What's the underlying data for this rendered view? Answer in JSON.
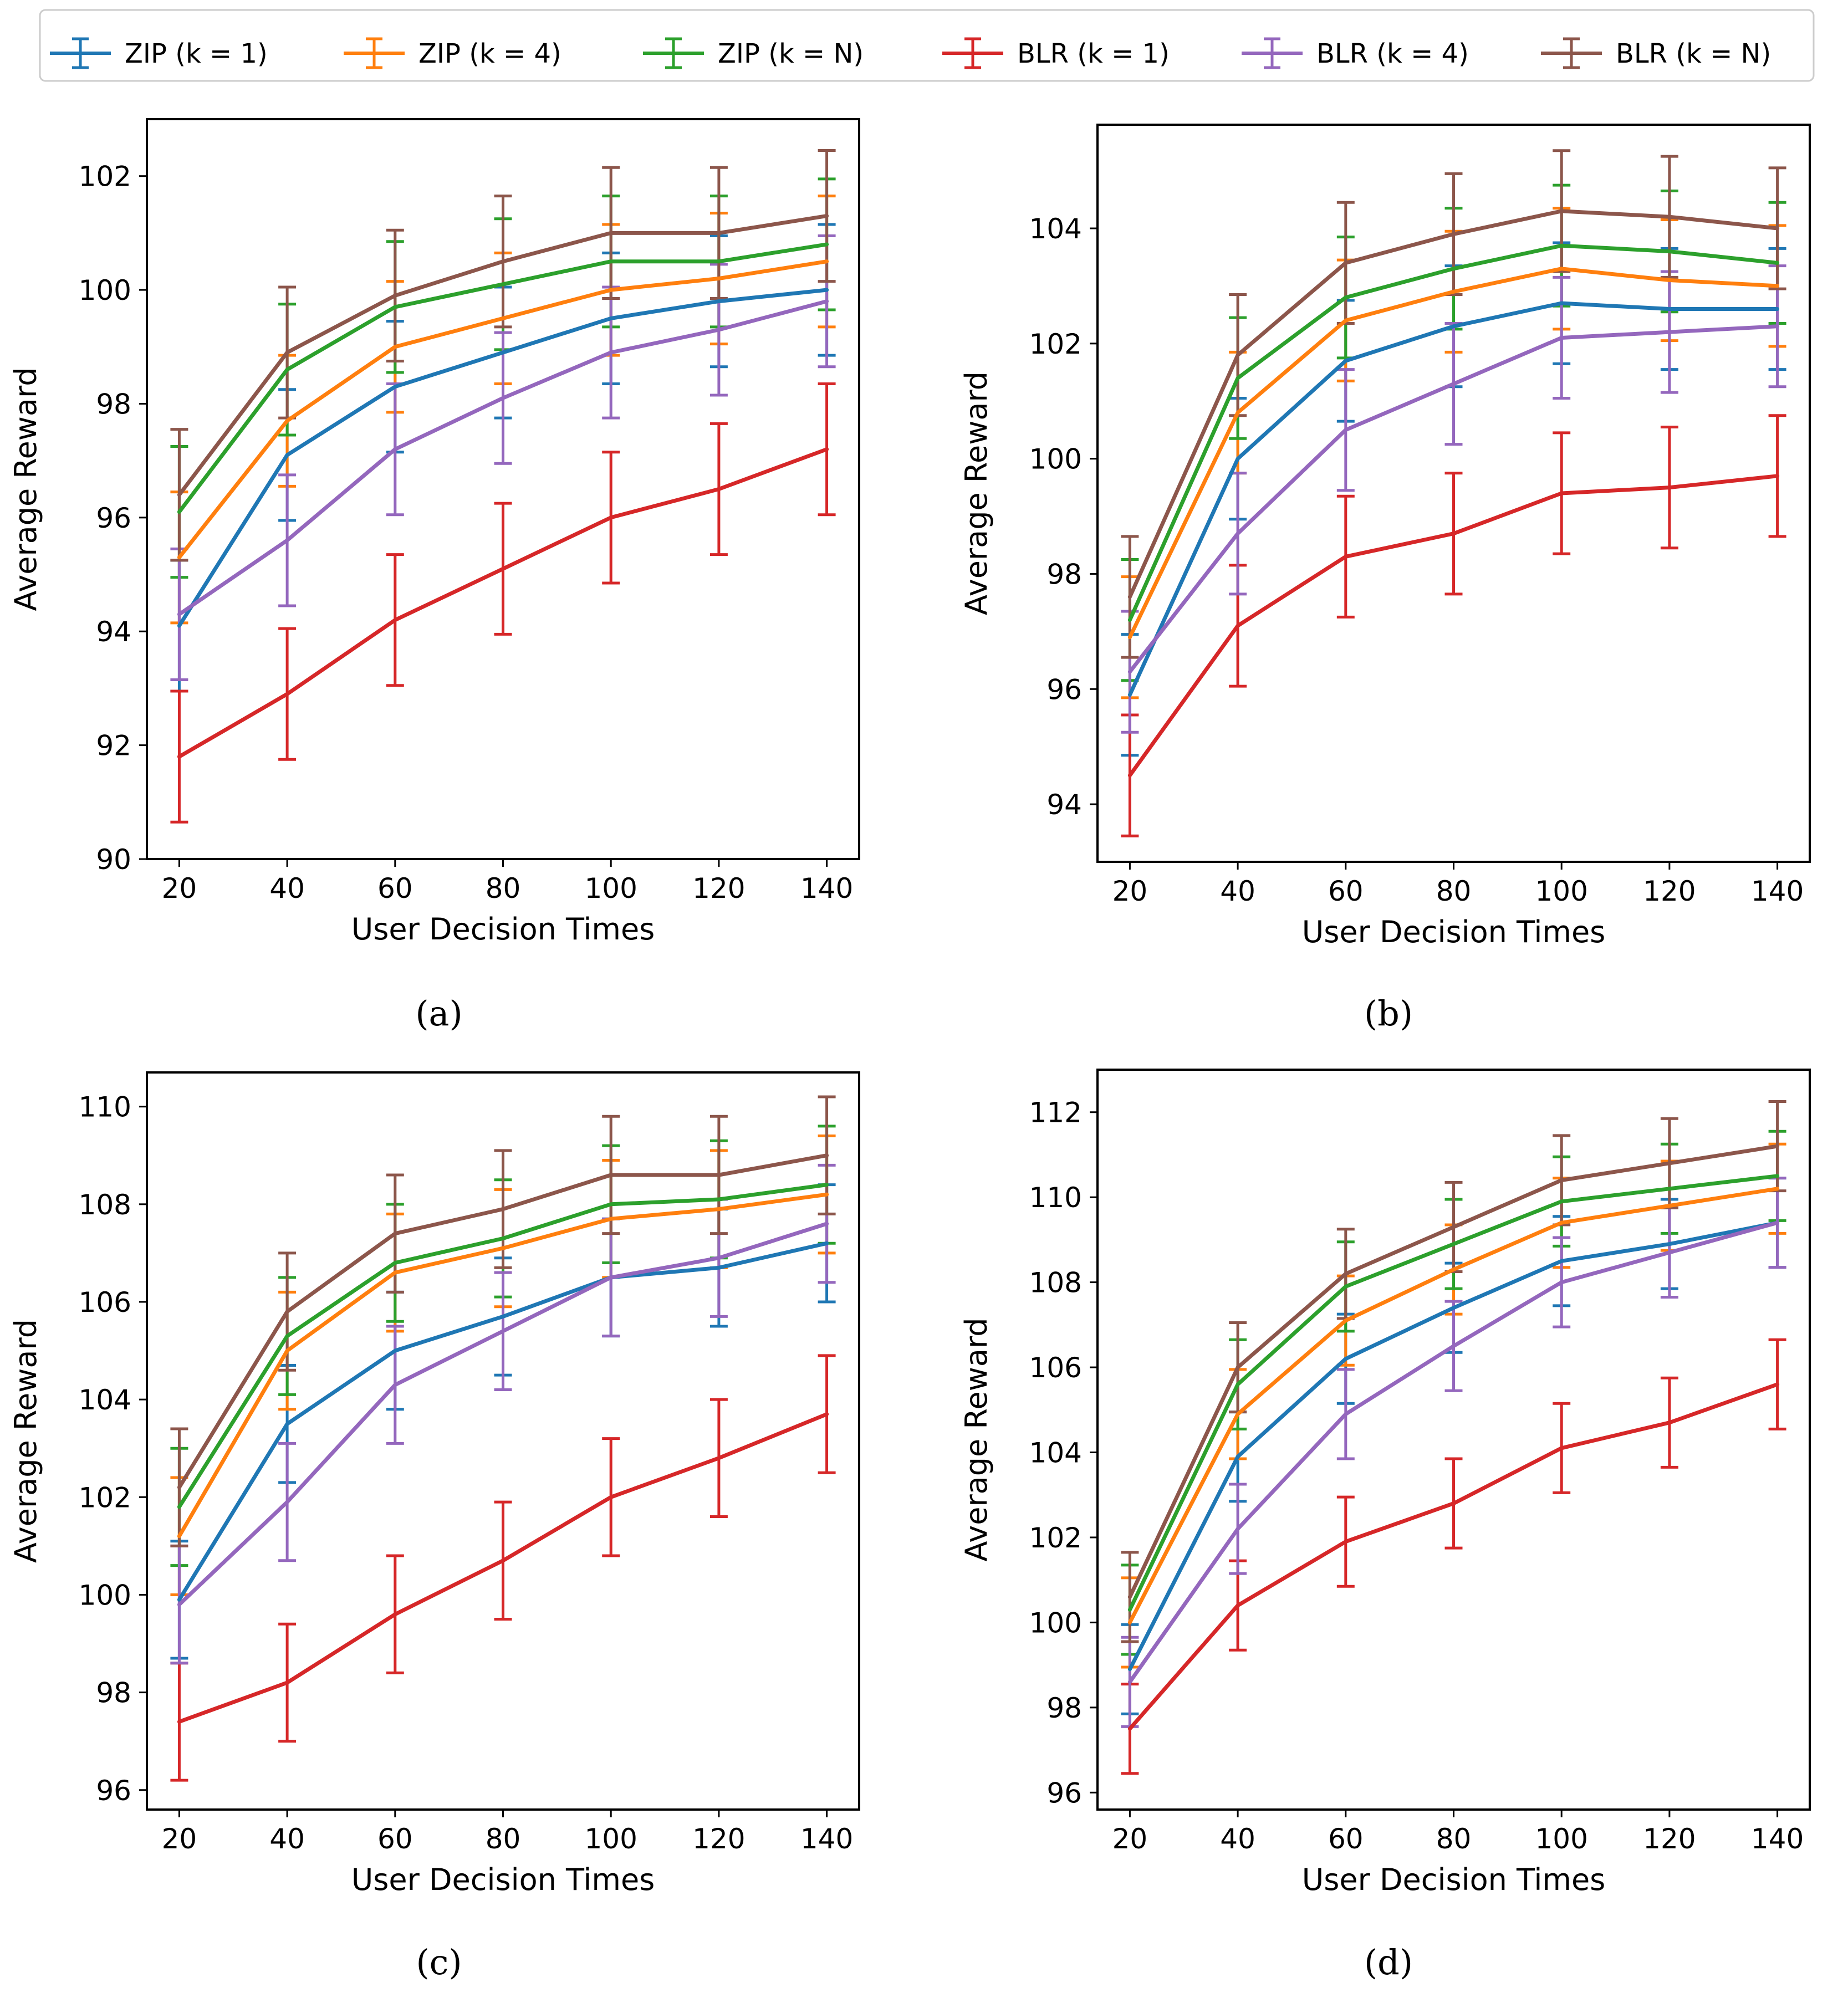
{
  "legend": {
    "entries": [
      {
        "name": "ZIP (k = 1)",
        "color": "#1f77b4"
      },
      {
        "name": "ZIP (k = 4)",
        "color": "#ff7f0e"
      },
      {
        "name": "ZIP (k = N)",
        "color": "#2ca02c"
      },
      {
        "name": "BLR (k = 1)",
        "color": "#d62728"
      },
      {
        "name": "BLR (k = 4)",
        "color": "#9467bd"
      },
      {
        "name": "BLR (k = N)",
        "color": "#8c564b"
      }
    ]
  },
  "chart_data": [
    {
      "type": "line",
      "caption": "(a)",
      "xlabel": "User Decision Times",
      "ylabel": "Average Reward",
      "x": [
        20,
        40,
        60,
        80,
        100,
        120,
        140
      ],
      "xticks": [
        20,
        40,
        60,
        80,
        100,
        120,
        140
      ],
      "ylim": [
        90,
        103.0
      ],
      "yticks": [
        90,
        92,
        94,
        96,
        98,
        100,
        102
      ],
      "error": 1.15,
      "series": [
        {
          "name": "ZIP (k = 1)",
          "values": [
            94.1,
            97.1,
            98.3,
            98.9,
            99.5,
            99.8,
            100.0
          ]
        },
        {
          "name": "ZIP (k = 4)",
          "values": [
            95.3,
            97.7,
            99.0,
            99.5,
            100.0,
            100.2,
            100.5
          ]
        },
        {
          "name": "ZIP (k = N)",
          "values": [
            96.1,
            98.6,
            99.7,
            100.1,
            100.5,
            100.5,
            100.8
          ]
        },
        {
          "name": "BLR (k = 1)",
          "values": [
            91.8,
            92.9,
            94.2,
            95.1,
            96.0,
            96.5,
            97.2
          ]
        },
        {
          "name": "BLR (k = 4)",
          "values": [
            94.3,
            95.6,
            97.2,
            98.1,
            98.9,
            99.3,
            99.8
          ]
        },
        {
          "name": "BLR (k = N)",
          "values": [
            96.4,
            98.9,
            99.9,
            100.5,
            101.0,
            101.0,
            101.3
          ]
        }
      ]
    },
    {
      "type": "line",
      "caption": "(b)",
      "xlabel": "User Decision Times",
      "ylabel": "Average Reward",
      "x": [
        20,
        40,
        60,
        80,
        100,
        120,
        140
      ],
      "xticks": [
        20,
        40,
        60,
        80,
        100,
        120,
        140
      ],
      "ylim": [
        93.0,
        105.8
      ],
      "yticks": [
        94,
        96,
        98,
        100,
        102,
        104
      ],
      "error": 1.05,
      "series": [
        {
          "name": "ZIP (k = 1)",
          "values": [
            95.9,
            100.0,
            101.7,
            102.3,
            102.7,
            102.6,
            102.6
          ]
        },
        {
          "name": "ZIP (k = 4)",
          "values": [
            96.9,
            100.8,
            102.4,
            102.9,
            103.3,
            103.1,
            103.0
          ]
        },
        {
          "name": "ZIP (k = N)",
          "values": [
            97.2,
            101.4,
            102.8,
            103.3,
            103.7,
            103.6,
            103.4
          ]
        },
        {
          "name": "BLR (k = 1)",
          "values": [
            94.5,
            97.1,
            98.3,
            98.7,
            99.4,
            99.5,
            99.7
          ]
        },
        {
          "name": "BLR (k = 4)",
          "values": [
            96.3,
            98.7,
            100.5,
            101.3,
            102.1,
            102.2,
            102.3
          ]
        },
        {
          "name": "BLR (k = N)",
          "values": [
            97.6,
            101.8,
            103.4,
            103.9,
            104.3,
            104.2,
            104.0
          ]
        }
      ]
    },
    {
      "type": "line",
      "caption": "(c)",
      "xlabel": "User Decision Times",
      "ylabel": "Average Reward",
      "x": [
        20,
        40,
        60,
        80,
        100,
        120,
        140
      ],
      "xticks": [
        20,
        40,
        60,
        80,
        100,
        120,
        140
      ],
      "ylim": [
        95.6,
        110.7
      ],
      "yticks": [
        96,
        98,
        100,
        102,
        104,
        106,
        108,
        110
      ],
      "error": 1.2,
      "series": [
        {
          "name": "ZIP (k = 1)",
          "values": [
            99.9,
            103.5,
            105.0,
            105.7,
            106.5,
            106.7,
            107.2
          ]
        },
        {
          "name": "ZIP (k = 4)",
          "values": [
            101.2,
            105.0,
            106.6,
            107.1,
            107.7,
            107.9,
            108.2
          ]
        },
        {
          "name": "ZIP (k = N)",
          "values": [
            101.8,
            105.3,
            106.8,
            107.3,
            108.0,
            108.1,
            108.4
          ]
        },
        {
          "name": "BLR (k = 1)",
          "values": [
            97.4,
            98.2,
            99.6,
            100.7,
            102.0,
            102.8,
            103.7
          ]
        },
        {
          "name": "BLR (k = 4)",
          "values": [
            99.8,
            101.9,
            104.3,
            105.4,
            106.5,
            106.9,
            107.6
          ]
        },
        {
          "name": "BLR (k = N)",
          "values": [
            102.2,
            105.8,
            107.4,
            107.9,
            108.6,
            108.6,
            109.0
          ]
        }
      ]
    },
    {
      "type": "line",
      "caption": "(d)",
      "xlabel": "User Decision Times",
      "ylabel": "Average Reward",
      "x": [
        20,
        40,
        60,
        80,
        100,
        120,
        140
      ],
      "xticks": [
        20,
        40,
        60,
        80,
        100,
        120,
        140
      ],
      "ylim": [
        95.6,
        113.0
      ],
      "yticks": [
        96,
        98,
        100,
        102,
        104,
        106,
        108,
        110,
        112
      ],
      "error": 1.05,
      "series": [
        {
          "name": "ZIP (k = 1)",
          "values": [
            98.9,
            103.9,
            106.2,
            107.4,
            108.5,
            108.9,
            109.4
          ]
        },
        {
          "name": "ZIP (k = 4)",
          "values": [
            100.0,
            104.9,
            107.1,
            108.3,
            109.4,
            109.8,
            110.2
          ]
        },
        {
          "name": "ZIP (k = N)",
          "values": [
            100.3,
            105.6,
            107.9,
            108.9,
            109.9,
            110.2,
            110.5
          ]
        },
        {
          "name": "BLR (k = 1)",
          "values": [
            97.5,
            100.4,
            101.9,
            102.8,
            104.1,
            104.7,
            105.6
          ]
        },
        {
          "name": "BLR (k = 4)",
          "values": [
            98.6,
            102.2,
            104.9,
            106.5,
            108.0,
            108.7,
            109.4
          ]
        },
        {
          "name": "BLR (k = N)",
          "values": [
            100.6,
            106.0,
            108.2,
            109.3,
            110.4,
            110.8,
            111.2
          ]
        }
      ]
    }
  ]
}
